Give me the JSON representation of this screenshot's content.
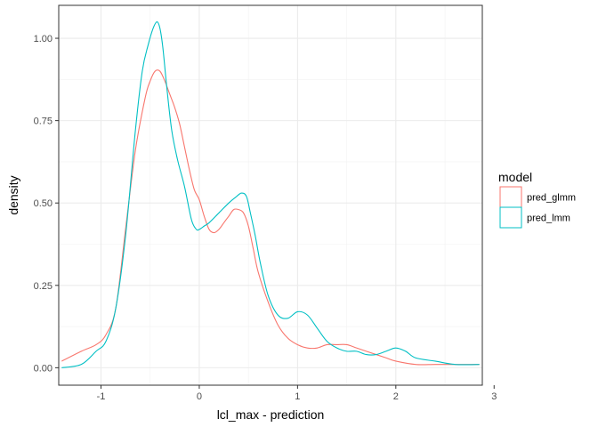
{
  "chart_data": {
    "type": "line",
    "title": "",
    "xlabel": "lcl_max - prediction",
    "ylabel": "density",
    "xlim": [
      -1.43,
      2.88
    ],
    "ylim": [
      -0.053,
      1.1
    ],
    "x_ticks": [
      {
        "value": -1,
        "label": "-1"
      },
      {
        "value": 0,
        "label": "0"
      },
      {
        "value": 1,
        "label": "1"
      },
      {
        "value": 2,
        "label": "2"
      },
      {
        "value": 3,
        "label": "3"
      }
    ],
    "y_ticks": [
      {
        "value": 0.0,
        "label": "0.00"
      },
      {
        "value": 0.25,
        "label": "0.25"
      },
      {
        "value": 0.5,
        "label": "0.50"
      },
      {
        "value": 0.75,
        "label": "0.75"
      },
      {
        "value": 1.0,
        "label": "1.00"
      }
    ],
    "grid": true,
    "legend": {
      "title": "model",
      "position": "right"
    },
    "series": [
      {
        "name": "pred_glmm",
        "color": "#F8766D",
        "x": [
          -1.4,
          -1.2,
          -1.05,
          -0.95,
          -0.85,
          -0.75,
          -0.65,
          -0.55,
          -0.5,
          -0.45,
          -0.4,
          -0.35,
          -0.3,
          -0.25,
          -0.2,
          -0.15,
          -0.1,
          -0.05,
          0.0,
          0.05,
          0.1,
          0.15,
          0.2,
          0.25,
          0.3,
          0.35,
          0.4,
          0.45,
          0.5,
          0.55,
          0.6,
          0.7,
          0.8,
          0.9,
          1.0,
          1.1,
          1.2,
          1.3,
          1.4,
          1.5,
          1.6,
          1.7,
          1.8,
          1.9,
          2.0,
          2.2,
          2.4,
          2.6,
          2.85
        ],
        "y": [
          0.02,
          0.05,
          0.07,
          0.1,
          0.18,
          0.42,
          0.66,
          0.82,
          0.87,
          0.9,
          0.9,
          0.87,
          0.83,
          0.79,
          0.74,
          0.67,
          0.6,
          0.54,
          0.51,
          0.46,
          0.42,
          0.41,
          0.42,
          0.44,
          0.46,
          0.48,
          0.48,
          0.47,
          0.43,
          0.36,
          0.29,
          0.2,
          0.13,
          0.09,
          0.07,
          0.06,
          0.06,
          0.07,
          0.07,
          0.07,
          0.06,
          0.05,
          0.04,
          0.03,
          0.02,
          0.01,
          0.01,
          0.01,
          0.01
        ]
      },
      {
        "name": "pred_lmm",
        "color": "#00BFC4",
        "x": [
          -1.4,
          -1.2,
          -1.05,
          -0.95,
          -0.85,
          -0.75,
          -0.65,
          -0.58,
          -0.52,
          -0.47,
          -0.43,
          -0.4,
          -0.37,
          -0.33,
          -0.28,
          -0.22,
          -0.15,
          -0.08,
          -0.03,
          0.0,
          0.05,
          0.1,
          0.2,
          0.3,
          0.38,
          0.43,
          0.48,
          0.52,
          0.57,
          0.62,
          0.7,
          0.8,
          0.9,
          1.0,
          1.1,
          1.2,
          1.3,
          1.4,
          1.5,
          1.6,
          1.7,
          1.8,
          1.9,
          2.0,
          2.1,
          2.2,
          2.4,
          2.6,
          2.85
        ],
        "y": [
          0.0,
          0.01,
          0.05,
          0.08,
          0.18,
          0.4,
          0.72,
          0.9,
          0.98,
          1.03,
          1.05,
          1.03,
          0.97,
          0.85,
          0.72,
          0.63,
          0.55,
          0.45,
          0.42,
          0.42,
          0.43,
          0.44,
          0.47,
          0.5,
          0.52,
          0.53,
          0.52,
          0.47,
          0.4,
          0.32,
          0.22,
          0.16,
          0.15,
          0.17,
          0.16,
          0.12,
          0.08,
          0.06,
          0.05,
          0.05,
          0.04,
          0.04,
          0.05,
          0.06,
          0.05,
          0.03,
          0.02,
          0.01,
          0.01
        ]
      }
    ]
  }
}
